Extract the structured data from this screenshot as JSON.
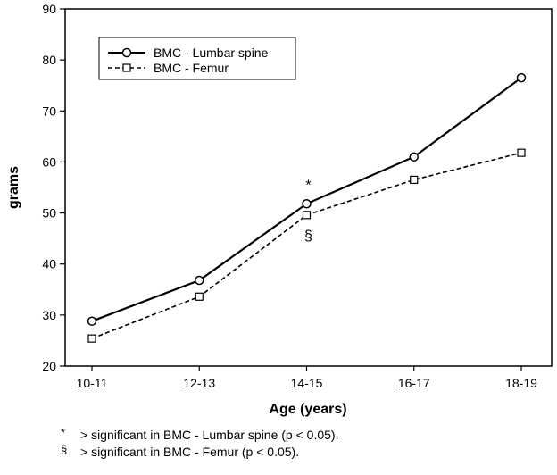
{
  "chart_data": {
    "type": "line",
    "categories": [
      "10-11",
      "12-13",
      "14-15",
      "16-17",
      "18-19"
    ],
    "series": [
      {
        "name": "BMC - Lumbar spine",
        "values": [
          28.8,
          36.8,
          51.8,
          61.0,
          76.5
        ],
        "marker": "circle",
        "line_style": "solid",
        "color": "#000000"
      },
      {
        "name": "BMC - Femur",
        "values": [
          25.4,
          33.6,
          49.6,
          56.5,
          61.8
        ],
        "marker": "square",
        "line_style": "dashed",
        "color": "#000000"
      }
    ],
    "title": "",
    "xlabel": "Age (years)",
    "ylabel": "grams",
    "ylim": [
      20,
      90
    ],
    "yticks": [
      20,
      30,
      40,
      50,
      60,
      70,
      80,
      90
    ],
    "grid": false,
    "legend_position": "top-left",
    "annotations": [
      {
        "text": "*",
        "category": "14-15",
        "position": "above",
        "series": 0
      },
      {
        "text": "§",
        "category": "14-15",
        "position": "below",
        "series": 1
      }
    ]
  },
  "footnotes": [
    {
      "symbol": "*",
      "text": "> significant in BMC - Lumbar spine (p < 0.05)."
    },
    {
      "symbol": "§",
      "text": "> significant in BMC - Femur (p < 0.05)."
    }
  ]
}
